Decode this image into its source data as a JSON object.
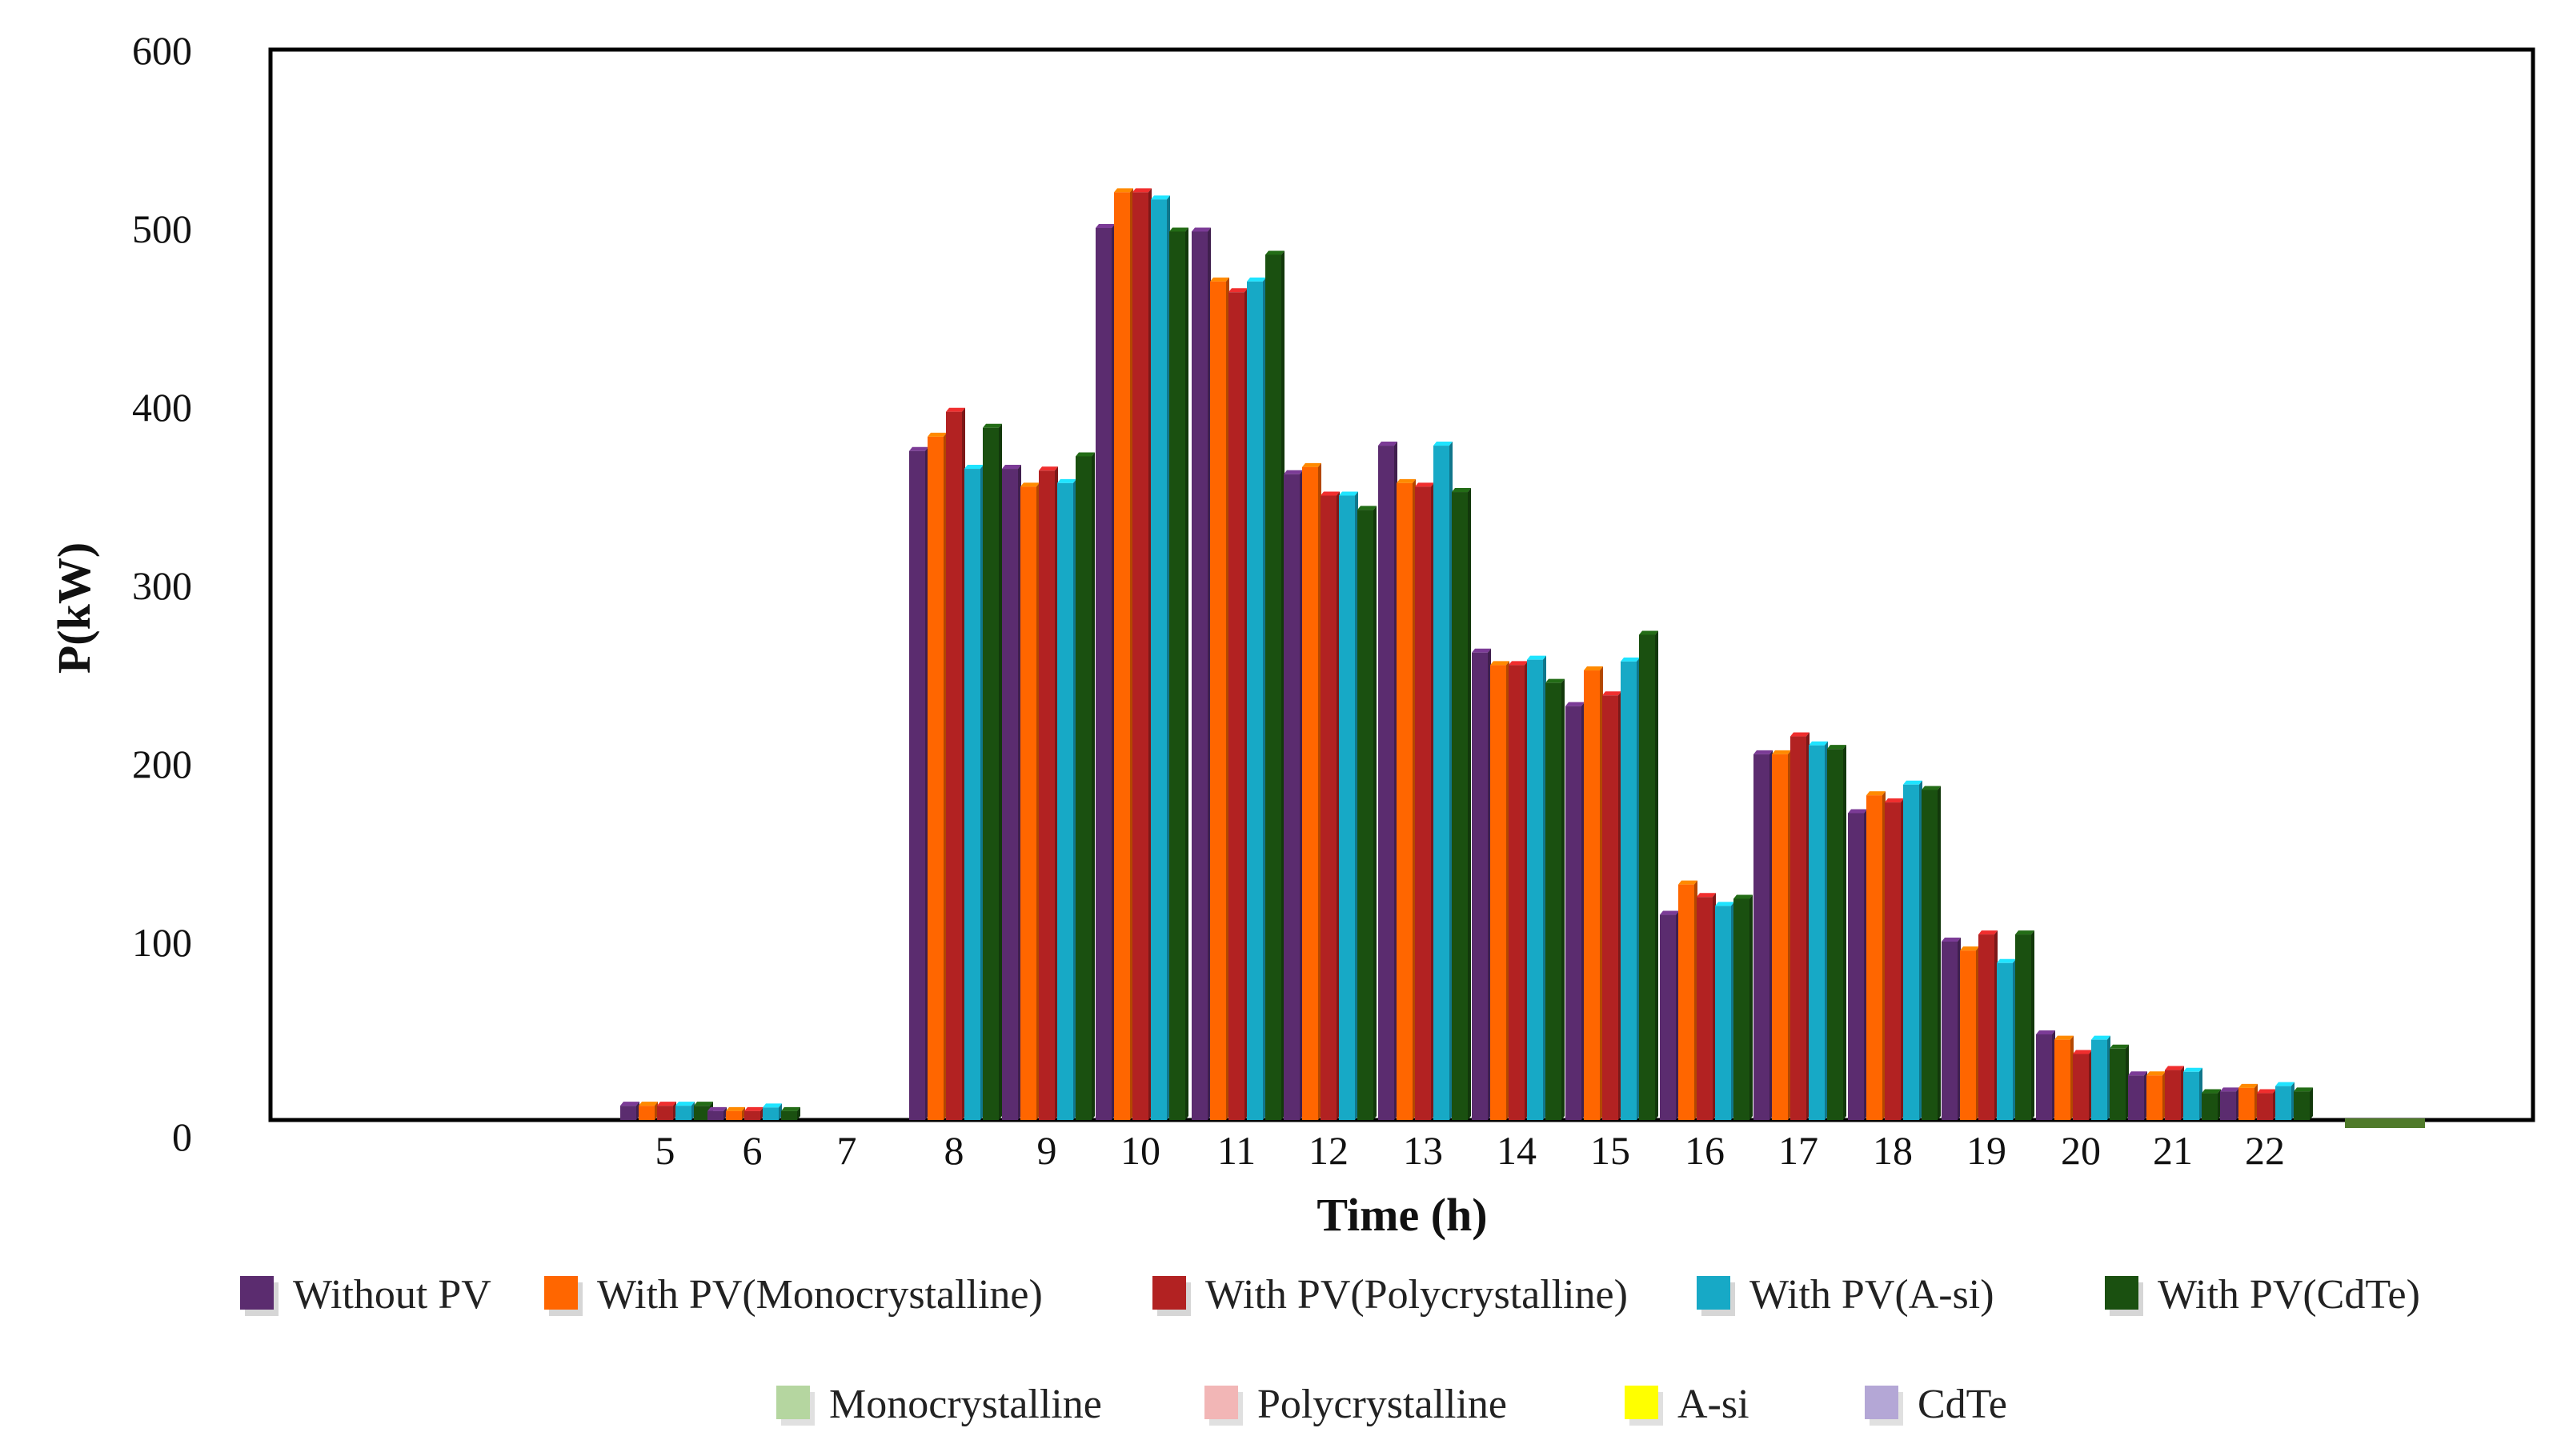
{
  "chart_data": {
    "type": "bar",
    "title": "",
    "xlabel": "Time (h)",
    "ylabel": "P(kW)",
    "ylim": [
      0,
      600
    ],
    "yticks": [
      0,
      100,
      200,
      300,
      400,
      500,
      600
    ],
    "categories": [
      "5",
      "6",
      "7",
      "8",
      "9",
      "10",
      "11",
      "12",
      "13",
      "14",
      "15",
      "16",
      "17",
      "18",
      "19",
      "20",
      "21",
      "22"
    ],
    "grid": false,
    "legend_position": "bottom",
    "series": [
      {
        "name": "Without  PV",
        "color": "#5b2c6f",
        "values": [
          8,
          5,
          0,
          375,
          365,
          500,
          498,
          362,
          378,
          262,
          232,
          115,
          205,
          172,
          100,
          48,
          25,
          16
        ]
      },
      {
        "name": "With PV(Monocrystalline)",
        "color": "#ff6600",
        "values": [
          8,
          5,
          0,
          383,
          355,
          520,
          470,
          366,
          357,
          255,
          252,
          132,
          205,
          182,
          95,
          45,
          25,
          18
        ]
      },
      {
        "name": "With PV(Polycrystalline)",
        "color": "#b22222",
        "values": [
          8,
          5,
          0,
          397,
          364,
          520,
          464,
          350,
          355,
          255,
          238,
          125,
          215,
          178,
          104,
          37,
          28,
          15
        ]
      },
      {
        "name": "With PV(A-si)",
        "color": "#17a9c6",
        "values": [
          8,
          7,
          0,
          365,
          357,
          516,
          470,
          350,
          378,
          258,
          257,
          120,
          210,
          188,
          88,
          45,
          27,
          19
        ]
      },
      {
        "name": "With PV(CdTe)",
        "color": "#1a5010",
        "values": [
          8,
          5,
          0,
          388,
          372,
          498,
          485,
          342,
          352,
          245,
          272,
          124,
          208,
          185,
          104,
          40,
          15,
          16
        ]
      }
    ],
    "pv_series": [
      {
        "name": "Monocrystalline",
        "color": "#b5d6a0"
      },
      {
        "name": "Polycrystalline",
        "color": "#f2b6b6"
      },
      {
        "name": "A-si",
        "color": "#ffff00"
      },
      {
        "name": "CdTe",
        "color": "#b4a7d6"
      }
    ]
  }
}
